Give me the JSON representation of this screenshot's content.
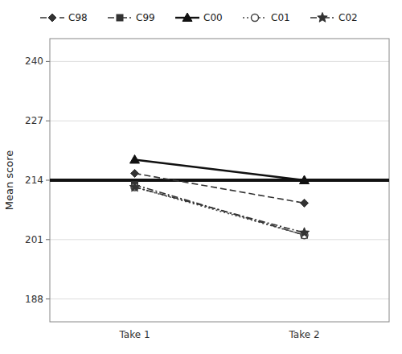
{
  "chart_data": {
    "type": "line",
    "y_label": "Mean score",
    "categories": [
      "Take 1",
      "Take 2"
    ],
    "series": [
      {
        "name": "C98",
        "values": [
          215.5,
          209.0
        ],
        "color": "#333333",
        "marker": "diamond",
        "line_style": "dashed"
      },
      {
        "name": "C99",
        "values": [
          213.0,
          202.0
        ],
        "color": "#333333",
        "marker": "square",
        "line_style": "dashdot"
      },
      {
        "name": "C00",
        "values": [
          218.5,
          214.0
        ],
        "color": "#111111",
        "marker": "triangle",
        "line_style": "solid"
      },
      {
        "name": "C01",
        "values": [
          212.5,
          202.0
        ],
        "color": "#444444",
        "marker": "circle-open",
        "line_style": "dotted"
      },
      {
        "name": "C02",
        "values": [
          212.5,
          202.5
        ],
        "color": "#333333",
        "marker": "star",
        "line_style": "dashdot"
      }
    ],
    "mean_line": 214.0,
    "mean_line_color": "#111111",
    "ylim": [
      183,
      245
    ],
    "yticks": [
      188,
      201,
      214,
      227,
      240
    ],
    "grid": true,
    "legend": "top"
  }
}
